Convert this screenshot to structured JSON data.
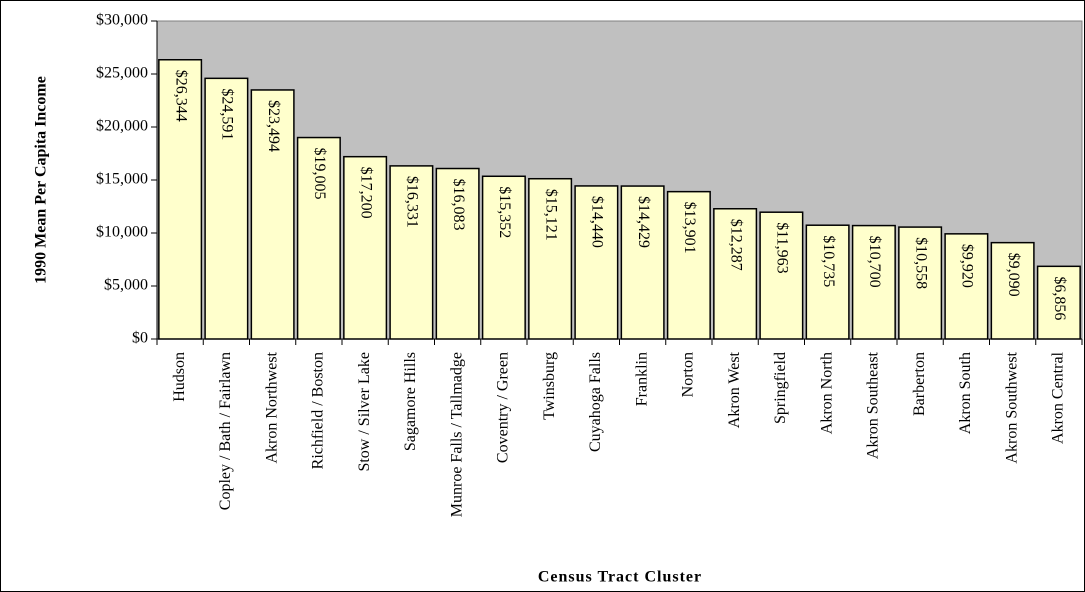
{
  "chart_data": {
    "type": "bar",
    "ylabel": "1990 Mean Per Capita Income",
    "xlabel": "Census Tract Cluster",
    "categories": [
      "Hudson",
      "Copley / Bath / Fairlawn",
      "Akron Northwest",
      "Richfield / Boston",
      "Stow / Silver Lake",
      "Sagamore Hills",
      "Munroe Falls / Tallmadge",
      "Coventry / Green",
      "Twinsburg",
      "Cuyahoga Falls",
      "Franklin",
      "Norton",
      "Akron West",
      "Springfield",
      "Akron North",
      "Akron Southeast",
      "Barberton",
      "Akron South",
      "Akron Southwest",
      "Akron Central"
    ],
    "values": [
      26344,
      24591,
      23494,
      19005,
      17200,
      16331,
      16083,
      15352,
      15121,
      14440,
      14429,
      13901,
      12287,
      11963,
      10735,
      10700,
      10558,
      9920,
      9090,
      6856
    ],
    "value_labels": [
      "$26,344",
      "$24,591",
      "$23,494",
      "$19,005",
      "$17,200",
      "$16,331",
      "$16,083",
      "$15,352",
      "$15,121",
      "$14,440",
      "$14,429",
      "$13,901",
      "$12,287",
      "$11,963",
      "$10,735",
      "$10,700",
      "$10,558",
      "$9,920",
      "$9,090",
      "$6,856"
    ],
    "color": "#ffffcc",
    "plot_background": "#c0c0c0",
    "ylim": [
      0,
      30000
    ],
    "yticks": [
      {
        "value": 0,
        "label": "$0"
      },
      {
        "value": 5000,
        "label": "$5,000"
      },
      {
        "value": 10000,
        "label": "$10,000"
      },
      {
        "value": 15000,
        "label": "$15,000"
      },
      {
        "value": 20000,
        "label": "$20,000"
      },
      {
        "value": 25000,
        "label": "$25,000"
      },
      {
        "value": 30000,
        "label": "$30,000"
      }
    ],
    "grid": false
  }
}
